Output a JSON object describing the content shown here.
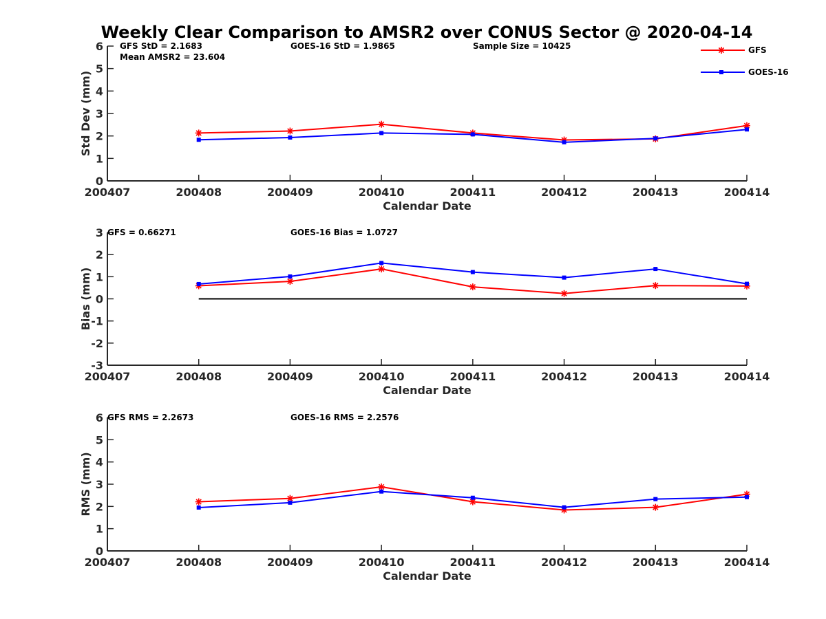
{
  "title": "Weekly Clear Comparison to AMSR2 over CONUS Sector @ 2020-04-14",
  "legend": [
    {
      "name": "GFS",
      "color": "#ff0000",
      "marker": "asterisk"
    },
    {
      "name": "GOES-16",
      "color": "#0000ff",
      "marker": "square"
    }
  ],
  "chart_data": [
    {
      "type": "line",
      "ylabel": "Std Dev (mm)",
      "xlabel": "Calendar Date",
      "x_ticks": [
        "200407",
        "200408",
        "200409",
        "200410",
        "200411",
        "200412",
        "200413",
        "200414"
      ],
      "y_ticks": [
        "0",
        "1",
        "2",
        "3",
        "4",
        "5",
        "6"
      ],
      "ylim": [
        0,
        6
      ],
      "annotations": [
        "GFS StD = 2.1683",
        "GOES-16 StD = 1.9865",
        "Sample Size = 10425",
        "Mean AMSR2 = 23.604"
      ],
      "series": [
        {
          "name": "GFS",
          "x": [
            "200408",
            "200409",
            "200410",
            "200411",
            "200412",
            "200413",
            "200414"
          ],
          "values": [
            2.13,
            2.22,
            2.52,
            2.13,
            1.82,
            1.87,
            2.46
          ]
        },
        {
          "name": "GOES-16",
          "x": [
            "200408",
            "200409",
            "200410",
            "200411",
            "200412",
            "200413",
            "200414"
          ],
          "values": [
            1.83,
            1.93,
            2.13,
            2.07,
            1.72,
            1.89,
            2.29
          ]
        }
      ],
      "zero_line": false
    },
    {
      "type": "line",
      "ylabel": "Bias (mm)",
      "xlabel": "Calendar Date",
      "x_ticks": [
        "200407",
        "200408",
        "200409",
        "200410",
        "200411",
        "200412",
        "200413",
        "200414"
      ],
      "y_ticks": [
        "-3",
        "-2",
        "-1",
        "0",
        "1",
        "2",
        "3"
      ],
      "ylim": [
        -3,
        3
      ],
      "annotations": [
        "GFS = 0.66271",
        "GOES-16 Bias  = 1.0727"
      ],
      "series": [
        {
          "name": "GFS",
          "x": [
            "200408",
            "200409",
            "200410",
            "200411",
            "200412",
            "200413",
            "200414"
          ],
          "values": [
            0.59,
            0.79,
            1.35,
            0.54,
            0.24,
            0.6,
            0.58
          ]
        },
        {
          "name": "GOES-16",
          "x": [
            "200408",
            "200409",
            "200410",
            "200411",
            "200412",
            "200413",
            "200414"
          ],
          "values": [
            0.67,
            1.01,
            1.62,
            1.21,
            0.96,
            1.35,
            0.68
          ]
        }
      ],
      "zero_line": true
    },
    {
      "type": "line",
      "ylabel": "RMS (mm)",
      "xlabel": "Calendar Date",
      "x_ticks": [
        "200407",
        "200408",
        "200409",
        "200410",
        "200411",
        "200412",
        "200413",
        "200414"
      ],
      "y_ticks": [
        "0",
        "1",
        "2",
        "3",
        "4",
        "5",
        "6"
      ],
      "ylim": [
        0,
        6
      ],
      "annotations": [
        "GFS RMS = 2.2673",
        "GOES-16 RMS = 2.2576"
      ],
      "series": [
        {
          "name": "GFS",
          "x": [
            "200408",
            "200409",
            "200410",
            "200411",
            "200412",
            "200413",
            "200414"
          ],
          "values": [
            2.21,
            2.36,
            2.88,
            2.21,
            1.84,
            1.96,
            2.55
          ]
        },
        {
          "name": "GOES-16",
          "x": [
            "200408",
            "200409",
            "200410",
            "200411",
            "200412",
            "200413",
            "200414"
          ],
          "values": [
            1.95,
            2.17,
            2.67,
            2.39,
            1.96,
            2.33,
            2.42
          ]
        }
      ],
      "zero_line": false
    }
  ]
}
